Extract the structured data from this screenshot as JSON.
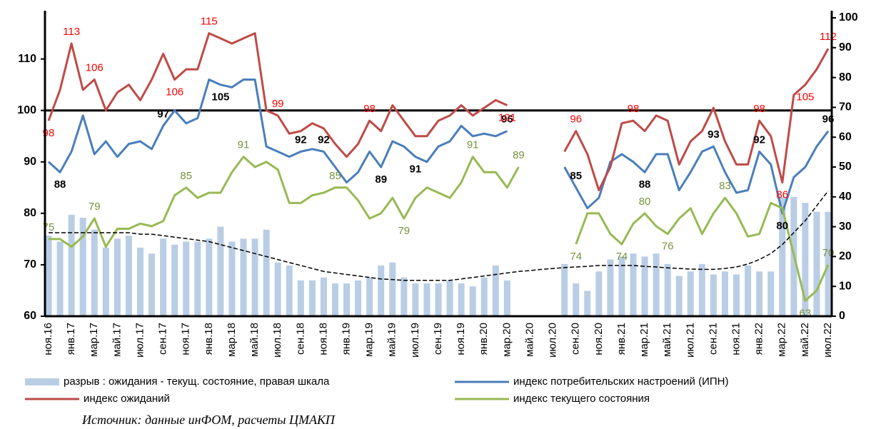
{
  "chart_data": {
    "type": "combo",
    "categories": [
      "ноя.16",
      null,
      "янв.17",
      null,
      "мар.17",
      null,
      "май.17",
      null,
      "июл.17",
      null,
      "сен.17",
      null,
      "ноя.17",
      null,
      "янв.18",
      null,
      "мар.18",
      null,
      "май.18",
      null,
      "июл.18",
      null,
      "сен.18",
      null,
      "ноя.18",
      null,
      "янв.19",
      null,
      "мар.19",
      null,
      "май.19",
      null,
      "июл.19",
      null,
      "сен.19",
      null,
      "ноя.19",
      null,
      "янв.20",
      null,
      "мар.20",
      null,
      "май.20",
      null,
      "июл.20",
      null,
      "сен.20",
      null,
      "ноя.20",
      null,
      "янв.21",
      null,
      "мар.21",
      null,
      "май.21",
      null,
      "июл.21",
      null,
      "сен.21",
      null,
      "ноя.21",
      null,
      "янв.22",
      null,
      "мар.22",
      null,
      "май.22",
      null,
      "июл.22"
    ],
    "ylim": [
      60,
      118
    ],
    "yticks": [
      60,
      70,
      80,
      90,
      100,
      110
    ],
    "y2lim": [
      0,
      100
    ],
    "y2ticks": [
      0,
      10,
      20,
      30,
      40,
      50,
      60,
      70,
      80,
      90,
      100
    ],
    "reference_line": 100,
    "series": [
      {
        "name": "разрыв : ожидания - текущ. состояние, правая шкала",
        "type": "bar",
        "axis": "y2",
        "color": "#b9cde5",
        "values": [
          27,
          25,
          34,
          33,
          29,
          23,
          26,
          27,
          23,
          21,
          26,
          24,
          25,
          25,
          26,
          30,
          25,
          26,
          26,
          29,
          18,
          17,
          12,
          12,
          13,
          11,
          11,
          12,
          13,
          17,
          18,
          13,
          11,
          11,
          11,
          12,
          11,
          10,
          13,
          17,
          12,
          null,
          null,
          null,
          null,
          17.5,
          11,
          8.5,
          15,
          19,
          20,
          21,
          20,
          21,
          17.5,
          13.5,
          15,
          17.5,
          14,
          15,
          14,
          17,
          15,
          15,
          40,
          40,
          38,
          35,
          35
        ]
      },
      {
        "name": "индекс потребительских настроений (ИПН)",
        "type": "line",
        "color": "#4a7ebb",
        "label_color": "#000000",
        "label_bold": true,
        "values": [
          90,
          88,
          92,
          99,
          91.5,
          94,
          91,
          93.5,
          94,
          92.5,
          97,
          100,
          97.5,
          98.5,
          106,
          105,
          104.5,
          106,
          106,
          93,
          92,
          91,
          92,
          92.5,
          92,
          89,
          86,
          88,
          92,
          89,
          94,
          93,
          91,
          90,
          93,
          94,
          97,
          95,
          95.5,
          95,
          96,
          null,
          null,
          null,
          null,
          89,
          85,
          81,
          83,
          90,
          91.5,
          90,
          88,
          91.5,
          91.5,
          84.5,
          88,
          92,
          93,
          88,
          84,
          84.5,
          92,
          89.5,
          80,
          87,
          89,
          93,
          96
        ],
        "value_labels": [
          null,
          "88",
          null,
          null,
          null,
          null,
          null,
          null,
          null,
          null,
          "97",
          null,
          null,
          null,
          null,
          "105",
          null,
          null,
          null,
          null,
          null,
          null,
          "92",
          null,
          "92",
          null,
          null,
          null,
          null,
          "89",
          null,
          null,
          "91",
          null,
          null,
          null,
          null,
          null,
          null,
          null,
          "96",
          null,
          null,
          null,
          null,
          null,
          "85",
          null,
          null,
          null,
          null,
          null,
          "88",
          null,
          null,
          null,
          null,
          null,
          "93",
          null,
          null,
          null,
          "92",
          null,
          "80",
          null,
          null,
          null,
          "96"
        ]
      },
      {
        "name": "индекс ожиданий",
        "type": "line",
        "color": "#be4b48",
        "label_color": "#ff0000",
        "label_bold": false,
        "values": [
          98,
          104,
          113,
          104,
          106,
          100,
          103.5,
          105,
          102,
          106,
          111,
          106,
          108,
          108,
          115,
          114,
          113,
          114,
          115,
          100,
          99,
          95.5,
          96,
          97.5,
          96.5,
          93.5,
          91,
          93.5,
          98,
          96,
          101,
          98,
          95,
          95,
          98,
          99,
          101,
          99,
          100.5,
          102,
          101,
          null,
          null,
          null,
          null,
          92,
          96,
          91.5,
          84.5,
          89,
          97.5,
          98,
          96,
          99,
          98,
          89.5,
          94,
          96,
          100.5,
          94,
          89.5,
          89.5,
          98,
          95,
          86,
          103,
          105,
          108,
          112
        ],
        "value_labels": [
          "98",
          null,
          "113",
          null,
          "106",
          null,
          null,
          null,
          null,
          null,
          null,
          "106",
          null,
          null,
          "115",
          null,
          null,
          null,
          null,
          null,
          "99",
          null,
          null,
          null,
          null,
          null,
          null,
          null,
          "98",
          null,
          null,
          null,
          null,
          null,
          null,
          null,
          null,
          null,
          null,
          null,
          "101",
          null,
          null,
          null,
          null,
          null,
          "96",
          null,
          null,
          null,
          null,
          "98",
          null,
          null,
          null,
          null,
          null,
          null,
          null,
          null,
          null,
          null,
          "98",
          null,
          "86",
          null,
          "105",
          null,
          "112"
        ]
      },
      {
        "name": "индекс текущего состояния",
        "type": "line",
        "color": "#98b954",
        "label_color": "#77933c",
        "label_bold": false,
        "values": [
          75,
          75,
          73.5,
          75.5,
          79,
          73.5,
          77,
          77,
          78,
          77.5,
          78.5,
          83.5,
          85,
          83,
          84,
          84,
          88,
          91,
          89,
          90,
          88.5,
          82,
          82,
          83.5,
          84,
          85,
          85,
          82.5,
          79,
          80,
          83,
          79,
          83,
          85,
          84,
          83,
          86,
          91,
          88,
          88,
          85,
          89,
          null,
          null,
          null,
          null,
          74,
          80,
          80,
          76,
          74,
          78,
          80,
          77.5,
          76,
          79,
          81,
          76,
          80,
          83,
          80,
          75.5,
          76,
          82,
          81,
          72,
          63,
          65,
          70
        ],
        "value_labels": [
          "75",
          null,
          null,
          null,
          "79",
          null,
          null,
          null,
          null,
          null,
          null,
          null,
          "85",
          null,
          null,
          null,
          null,
          "91",
          null,
          null,
          null,
          null,
          null,
          null,
          null,
          "85",
          null,
          null,
          null,
          null,
          null,
          "79",
          null,
          null,
          null,
          null,
          null,
          "91",
          null,
          null,
          null,
          "89",
          null,
          null,
          null,
          null,
          "74",
          null,
          null,
          null,
          "74",
          null,
          "80",
          null,
          "76",
          null,
          null,
          null,
          null,
          "83",
          null,
          null,
          null,
          null,
          null,
          null,
          "63",
          null,
          "70"
        ]
      },
      {
        "type": "line",
        "axis": "y2",
        "color": "#000000",
        "dash": true,
        "values": [
          28,
          28,
          28,
          28,
          28,
          28,
          28,
          28,
          27.5,
          27.5,
          27,
          26.5,
          26,
          25.5,
          25,
          24,
          23,
          22,
          21,
          20,
          19,
          18,
          17,
          16,
          15,
          14.5,
          14,
          13.5,
          13,
          12.5,
          12.3,
          12,
          12,
          12,
          12,
          12,
          12.5,
          13,
          13.5,
          14,
          14.5,
          15,
          15.3,
          15.7,
          16,
          16.3,
          16.5,
          16.7,
          17,
          17,
          17,
          17,
          16.7,
          16.5,
          16.2,
          16,
          15.8,
          15.7,
          15.7,
          16,
          16.5,
          17.5,
          19,
          21,
          24,
          28,
          32,
          37,
          42
        ]
      }
    ],
    "source": "Источник: данные инФОМ, расчеты ЦМАКП"
  }
}
